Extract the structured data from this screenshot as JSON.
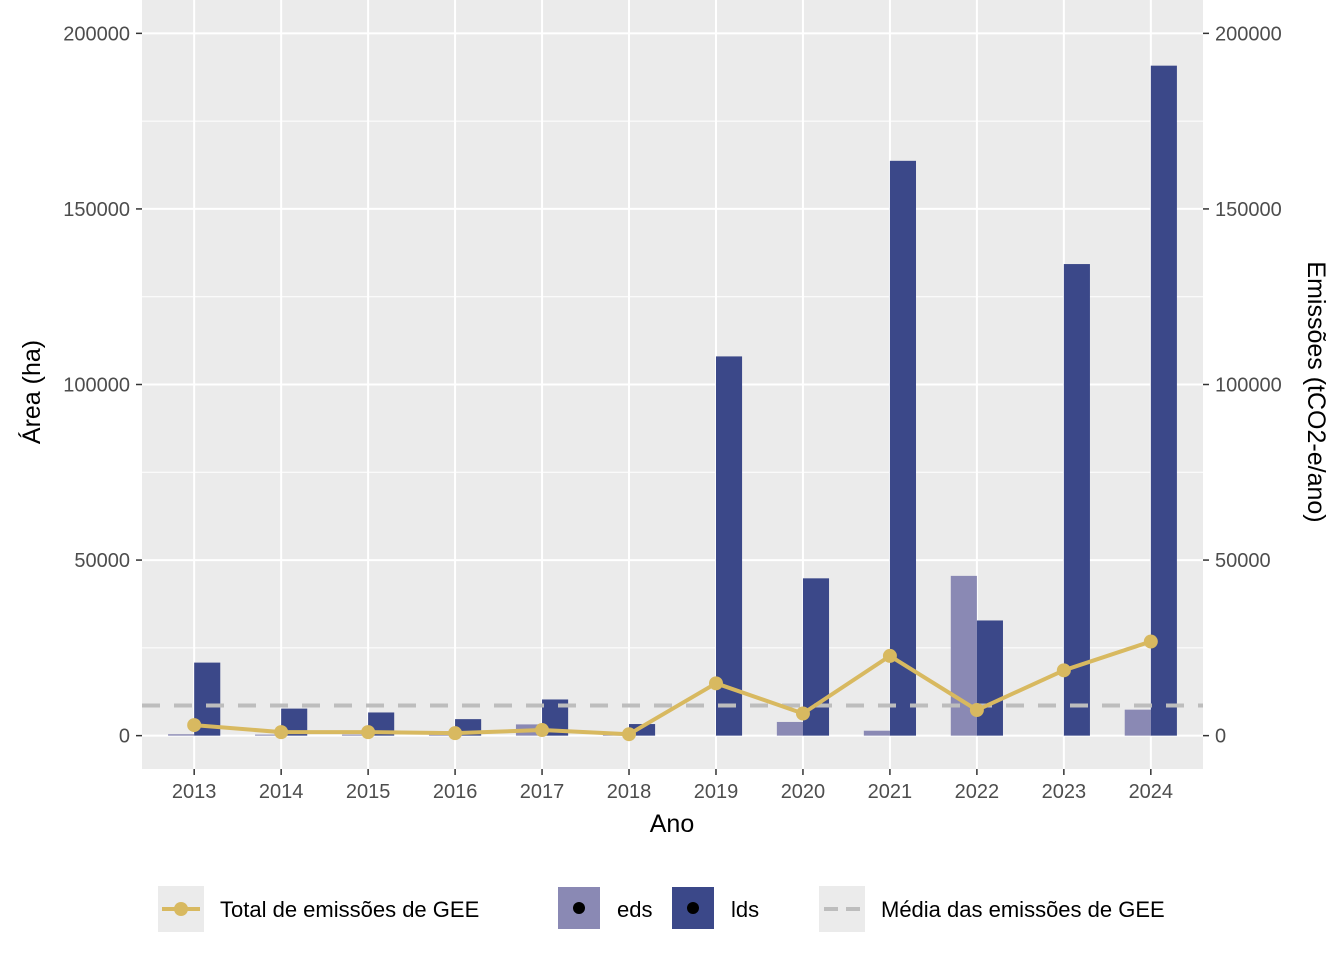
{
  "chart_data": {
    "type": "bar",
    "categories": [
      "2013",
      "2014",
      "2015",
      "2016",
      "2017",
      "2018",
      "2019",
      "2020",
      "2021",
      "2022",
      "2023",
      "2024"
    ],
    "series": [
      {
        "name": "eds",
        "kind": "bar",
        "color": "#8a89b4",
        "values": [
          400,
          300,
          300,
          300,
          3200,
          300,
          0,
          3900,
          1400,
          45500,
          0,
          7400
        ]
      },
      {
        "name": "lds",
        "kind": "bar",
        "color": "#3b4889",
        "values": [
          20800,
          7700,
          6600,
          4700,
          10300,
          3300,
          108000,
          44800,
          163700,
          32800,
          134300,
          190800
        ]
      },
      {
        "name": "Total de emissões de GEE",
        "kind": "line",
        "axis": "right",
        "color": "#d8b960",
        "values": [
          3000,
          1000,
          1000,
          700,
          1600,
          400,
          14900,
          6300,
          22700,
          7300,
          18600,
          26800
        ]
      }
    ],
    "reference_line": {
      "name": "Média das emissões de GEE",
      "value": 8600,
      "style": "dashed",
      "color": "#bdbdbd"
    },
    "xlabel": "Ano",
    "ylabel": "Área (ha)",
    "ylabel_right": "Emissões (tCO2-e/ano)",
    "yticks": [
      "0",
      "50000",
      "100000",
      "150000",
      "200000"
    ],
    "ylim": [
      -9500,
      209500
    ],
    "y2lim": [
      -9500,
      209500
    ],
    "grid": true,
    "legend_position": "bottom",
    "legend": [
      {
        "label": "Total de emissões de GEE",
        "kind": "line-point",
        "color": "#d8b960"
      },
      {
        "label": "eds",
        "kind": "bar",
        "color": "#8a89b4"
      },
      {
        "label": "lds",
        "kind": "bar",
        "color": "#3b4889"
      },
      {
        "label": "Média das emissões de GEE",
        "kind": "dashed",
        "color": "#bdbdbd"
      }
    ]
  }
}
